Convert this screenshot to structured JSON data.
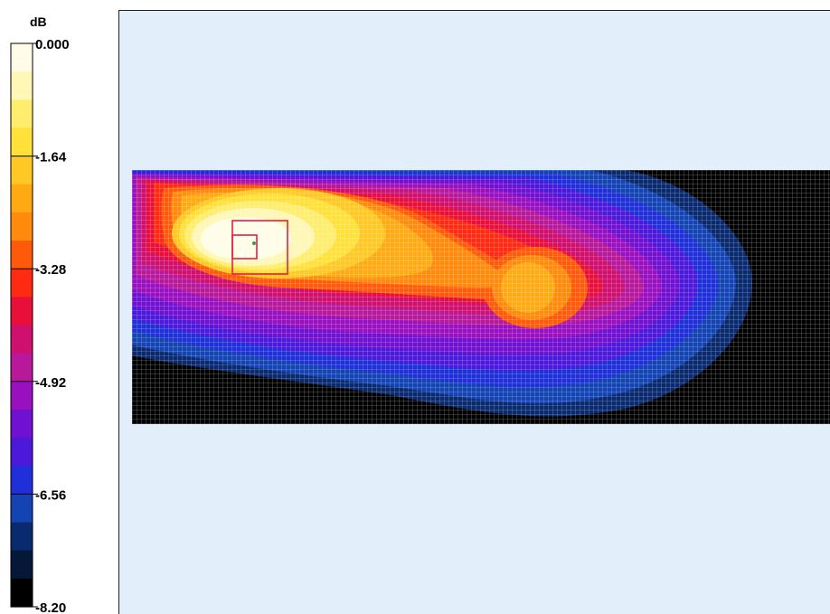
{
  "chart_data": {
    "type": "heatmap",
    "colorbar": {
      "unit": "dB",
      "min": -8.2,
      "max": 0.0,
      "tick_labels": [
        "0.000",
        "-1.64",
        "-3.28",
        "-4.92",
        "-6.56",
        "-8.20"
      ],
      "levels": 20,
      "colors": [
        "#fffde8",
        "#fff7b6",
        "#ffed6d",
        "#ffe13a",
        "#ffc825",
        "#ffaa12",
        "#ff8a0b",
        "#ff5a0a",
        "#ff2a12",
        "#e8103a",
        "#d0106e",
        "#b8189a",
        "#9810c0",
        "#7010d0",
        "#4c18da",
        "#2030d8",
        "#1444b4",
        "#0a2a70",
        "#061838",
        "#000000"
      ]
    },
    "grid": true,
    "background_color": "#e2effb",
    "field_region_color": "#000000",
    "markers": [
      "measurement-frame",
      "inner-frame",
      "probe-point"
    ]
  }
}
